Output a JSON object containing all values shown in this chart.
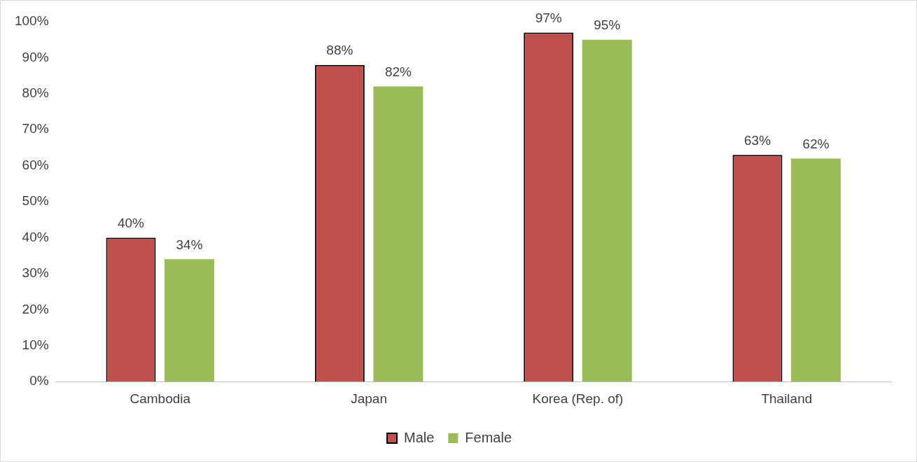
{
  "chart_data": {
    "type": "bar",
    "categories": [
      "Cambodia",
      "Japan",
      "Korea (Rep. of)",
      "Thailand"
    ],
    "series": [
      {
        "name": "Male",
        "color": "#c0504d",
        "values": [
          40,
          88,
          97,
          63
        ],
        "value_labels": [
          "40%",
          "88%",
          "97%",
          "63%"
        ]
      },
      {
        "name": "Female",
        "color": "#9bbb59",
        "values": [
          34,
          82,
          95,
          62
        ],
        "value_labels": [
          "34%",
          "82%",
          "95%",
          "62%"
        ]
      }
    ],
    "ylim": [
      0,
      100
    ],
    "yticks": [
      {
        "value": 0,
        "label": "0%"
      },
      {
        "value": 10,
        "label": "10%"
      },
      {
        "value": 20,
        "label": "20%"
      },
      {
        "value": 30,
        "label": "30%"
      },
      {
        "value": 40,
        "label": "40%"
      },
      {
        "value": 50,
        "label": "50%"
      },
      {
        "value": 60,
        "label": "60%"
      },
      {
        "value": 70,
        "label": "70%"
      },
      {
        "value": 80,
        "label": "80%"
      },
      {
        "value": 90,
        "label": "90%"
      },
      {
        "value": 100,
        "label": "100%"
      }
    ],
    "grid": false,
    "legend": "bottom"
  }
}
